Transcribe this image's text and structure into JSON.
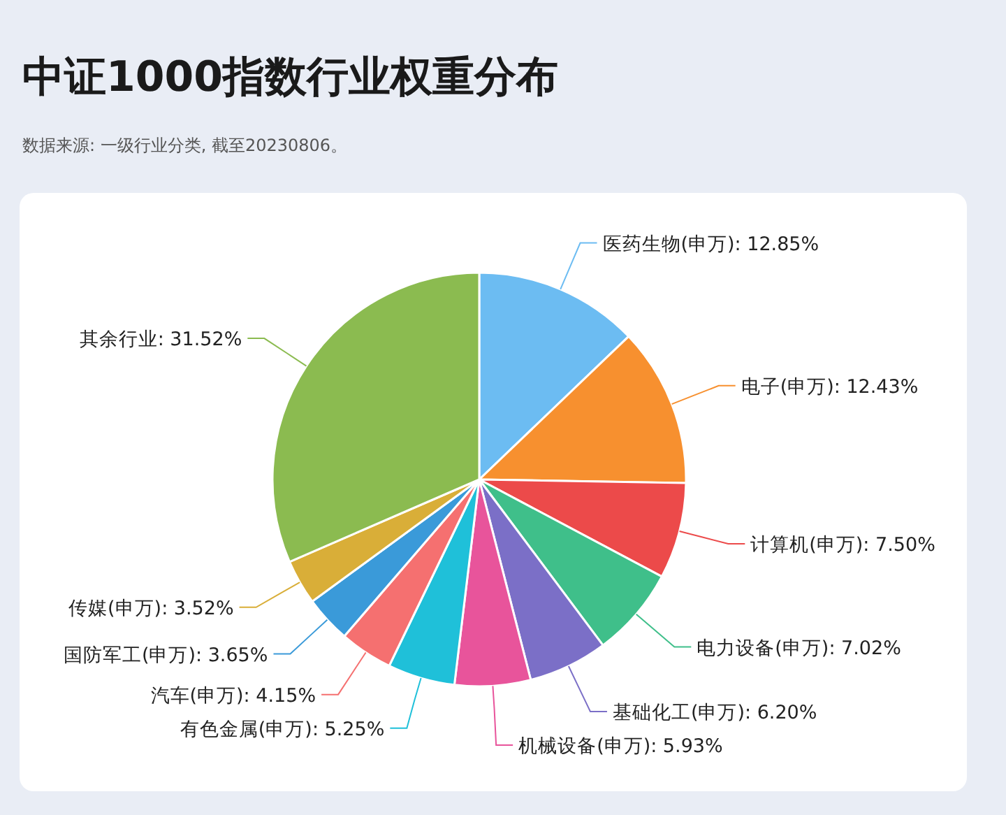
{
  "chart_data": {
    "type": "pie",
    "title": "中证1000指数行业权重分布",
    "annotations": [
      "数据来源: 一级行业分类, 截至20230806。"
    ],
    "categories": [
      "医药生物(申万)",
      "电子(申万)",
      "计算机(申万)",
      "电力设备(申万)",
      "基础化工(申万)",
      "机械设备(申万)",
      "有色金属(申万)",
      "汽车(申万)",
      "国防军工(申万)",
      "传媒(申万)",
      "其余行业"
    ],
    "values": [
      12.85,
      12.43,
      7.5,
      7.02,
      6.2,
      5.93,
      5.25,
      4.15,
      3.65,
      3.52,
      31.52
    ],
    "value_labels": [
      "12.85%",
      "12.43%",
      "7.50%",
      "7.02%",
      "6.20%",
      "5.93%",
      "5.25%",
      "4.15%",
      "3.65%",
      "3.52%",
      "31.52%"
    ],
    "colors": [
      "#6cbcf2",
      "#f7902f",
      "#ec4a4a",
      "#3fbf8a",
      "#7b6fc7",
      "#e8549b",
      "#1fc0d9",
      "#f57070",
      "#3a9ad9",
      "#d9ae38",
      "#8bbb50"
    ]
  }
}
